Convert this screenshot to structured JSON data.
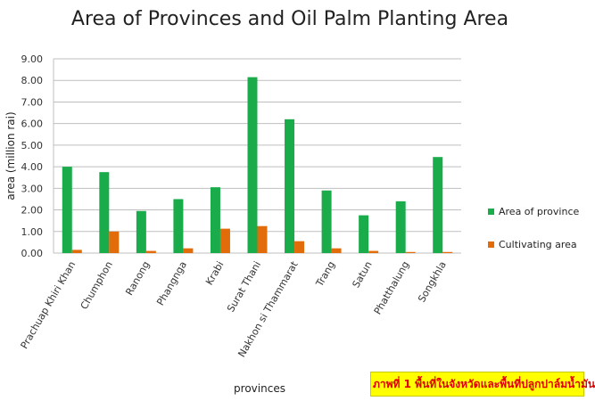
{
  "chart_data": {
    "type": "bar",
    "title": "Area of Provinces and Oil Palm Planting Area",
    "xlabel": "provinces",
    "ylabel": "area (million rai)",
    "ylim": [
      0,
      9
    ],
    "yticks": [
      "0.00",
      "1.00",
      "2.00",
      "3.00",
      "4.00",
      "5.00",
      "6.00",
      "7.00",
      "8.00",
      "9.00"
    ],
    "grid": "horizontal",
    "legend_position": "right",
    "categories": [
      "Prachuap Khiri Khan",
      "Chumphon",
      "Ranong",
      "Phangnga",
      "Krabi",
      "Surat Thani",
      "Nakhon si Thammarat",
      "Trang",
      "Satun",
      "Phatthalung",
      "Songkhla"
    ],
    "series": [
      {
        "name": "Area of province",
        "color": "#1aab4b",
        "values": [
          4.0,
          3.75,
          1.95,
          2.5,
          3.05,
          8.15,
          6.2,
          2.9,
          1.75,
          2.4,
          4.45
        ]
      },
      {
        "name": "Cultivating area",
        "color": "#e36c0a",
        "values": [
          0.15,
          1.0,
          0.1,
          0.22,
          1.13,
          1.25,
          0.55,
          0.22,
          0.1,
          0.05,
          0.05
        ]
      }
    ]
  },
  "caption": "ภาพที่ 1 พื้นที่ในจังหวัดและพื้นที่ปลูกปาล์มน้ำมัน"
}
